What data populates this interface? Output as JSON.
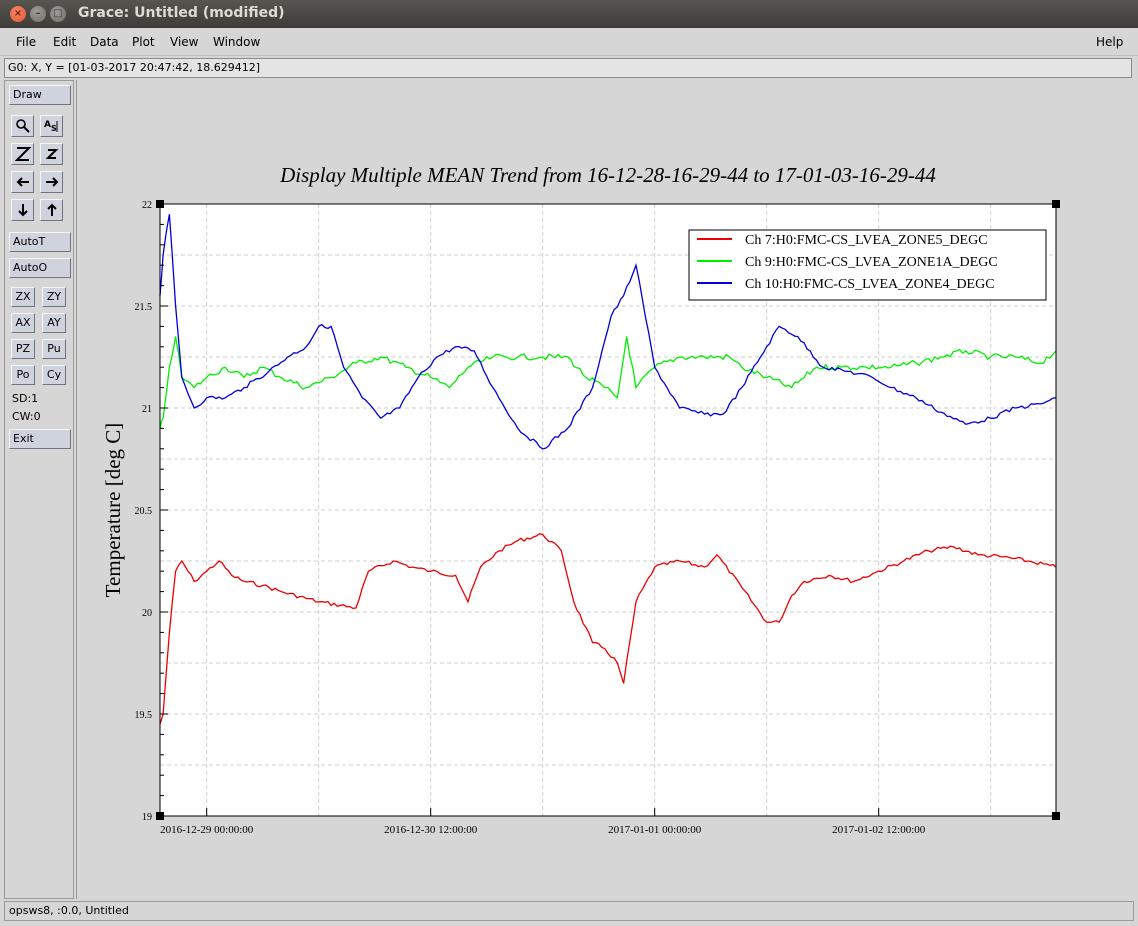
{
  "window": {
    "title": "Grace: Untitled (modified)",
    "close_glyph": "×",
    "min_glyph": "–",
    "max_glyph": "□"
  },
  "menu": {
    "file": "File",
    "edit": "Edit",
    "data": "Data",
    "plot": "Plot",
    "view": "View",
    "window": "Window",
    "help": "Help"
  },
  "coord_readout": "G0: X, Y = [01-03-2017 20:47:42, 18.629412]",
  "toolbar": {
    "draw": "Draw",
    "autot": "AutoT",
    "autoo": "AutoO",
    "zx": "ZX",
    "zy": "ZY",
    "ax": "AX",
    "ay": "AY",
    "pz": "PZ",
    "pu": "Pu",
    "po": "Po",
    "cy": "Cy",
    "sd": "SD:1",
    "cw": "CW:0",
    "exit": "Exit",
    "icons": [
      "zoom-icon",
      "autoscale-text-icon",
      "zoom-in-z-icon",
      "zoom-out-z-icon",
      "shift-left-icon",
      "shift-right-icon",
      "shift-down-icon",
      "shift-up-icon"
    ]
  },
  "status": "opsws8, :0.0, Untitled",
  "colors": {
    "red": "#ee0000",
    "green": "#00ee00",
    "blue": "#0000dd"
  },
  "chart_data": {
    "type": "line",
    "title": "Display Multiple MEAN Trend from 16-12-28-16-29-44 to 17-01-03-16-29-44",
    "xlabel": "",
    "ylabel": "Temperature [deg C]",
    "ylim": [
      19,
      22
    ],
    "yticks": [
      "19",
      "19.5",
      "20",
      "20.5",
      "21",
      "21.5",
      "22"
    ],
    "xlim": [
      "2016-12-28 16:29:44",
      "2017-01-03 16:29:44"
    ],
    "xticks": [
      "2016-12-29 00:00:00",
      "2016-12-30 12:00:00",
      "2017-01-01 00:00:00",
      "2017-01-02 12:00:00"
    ],
    "grid": true,
    "legend_position": "top-right",
    "series": [
      {
        "name": "Ch 7:H0:FMC-CS_LVEA_ZONE5_DEGC",
        "color": "#ee0000",
        "x": [
          "2016-12-28 16:29:44",
          "2016-12-28 17:00",
          "2016-12-28 18:00",
          "2016-12-28 19:00",
          "2016-12-28 20:00",
          "2016-12-28 22:00",
          "2016-12-29 00:00",
          "2016-12-29 02:00",
          "2016-12-29 04:00",
          "2016-12-29 06:00",
          "2016-12-29 09:00",
          "2016-12-29 12:00",
          "2016-12-29 18:00",
          "2016-12-30 00:00",
          "2016-12-30 02:00",
          "2016-12-30 06:00",
          "2016-12-30 09:00",
          "2016-12-30 12:00",
          "2016-12-30 16:00",
          "2016-12-30 18:00",
          "2016-12-30 20:00",
          "2016-12-30 23:00",
          "2016-12-31 02:00",
          "2016-12-31 06:00",
          "2016-12-31 09:00",
          "2016-12-31 11:00",
          "2016-12-31 14:00",
          "2016-12-31 16:00",
          "2016-12-31 18:00",
          "2016-12-31 19:00",
          "2016-12-31 21:00",
          "2017-01-01 00:00",
          "2017-01-01 04:00",
          "2017-01-01 08:00",
          "2017-01-01 10:00",
          "2017-01-01 14:00",
          "2017-01-01 18:00",
          "2017-01-01 20:00",
          "2017-01-01 22:00",
          "2017-01-02 00:00",
          "2017-01-02 04:00",
          "2017-01-02 08:00",
          "2017-01-02 12:00",
          "2017-01-02 16:00",
          "2017-01-02 20:00",
          "2017-01-03 00:00",
          "2017-01-03 04:00",
          "2017-01-03 08:00",
          "2017-01-03 12:00",
          "2017-01-03 16:29:44"
        ],
        "y": [
          19.45,
          19.5,
          19.9,
          20.2,
          20.25,
          20.15,
          20.2,
          20.25,
          20.18,
          20.15,
          20.13,
          20.1,
          20.05,
          20.02,
          20.2,
          20.25,
          20.22,
          20.2,
          20.18,
          20.05,
          20.22,
          20.3,
          20.35,
          20.38,
          20.3,
          20.05,
          19.85,
          19.82,
          19.75,
          19.65,
          20.05,
          20.22,
          20.25,
          20.22,
          20.28,
          20.12,
          19.95,
          19.95,
          20.08,
          20.15,
          20.18,
          20.15,
          20.2,
          20.25,
          20.3,
          20.32,
          20.28,
          20.27,
          20.25,
          20.22
        ]
      },
      {
        "name": "Ch 9:H0:FMC-CS_LVEA_ZONE1A_DEGC",
        "color": "#00ee00",
        "x": [
          "2016-12-28 16:29:44",
          "2016-12-28 17:00",
          "2016-12-28 18:00",
          "2016-12-28 19:00",
          "2016-12-28 20:00",
          "2016-12-28 22:00",
          "2016-12-29 00:00",
          "2016-12-29 03:00",
          "2016-12-29 06:00",
          "2016-12-29 09:00",
          "2016-12-29 12:00",
          "2016-12-29 16:00",
          "2016-12-29 20:00",
          "2016-12-30 00:00",
          "2016-12-30 04:00",
          "2016-12-30 08:00",
          "2016-12-30 12:00",
          "2016-12-30 15:00",
          "2016-12-30 18:00",
          "2016-12-30 22:00",
          "2016-12-31 02:00",
          "2016-12-31 06:00",
          "2016-12-31 10:00",
          "2016-12-31 13:00",
          "2016-12-31 16:00",
          "2016-12-31 18:00",
          "2016-12-31 19:30",
          "2016-12-31 21:00",
          "2017-01-01 00:00",
          "2017-01-01 04:00",
          "2017-01-01 08:00",
          "2017-01-01 12:00",
          "2017-01-01 14:00",
          "2017-01-01 18:00",
          "2017-01-01 22:00",
          "2017-01-02 02:00",
          "2017-01-02 06:00",
          "2017-01-02 10:00",
          "2017-01-02 14:00",
          "2017-01-02 18:00",
          "2017-01-02 22:00",
          "2017-01-03 02:00",
          "2017-01-03 06:00",
          "2017-01-03 10:00",
          "2017-01-03 14:00",
          "2017-01-03 16:29:44"
        ],
        "y": [
          20.9,
          20.95,
          21.2,
          21.35,
          21.15,
          21.1,
          21.15,
          21.2,
          21.15,
          21.2,
          21.15,
          21.1,
          21.15,
          21.22,
          21.25,
          21.2,
          21.15,
          21.1,
          21.2,
          21.25,
          21.25,
          21.25,
          21.25,
          21.15,
          21.1,
          21.05,
          21.35,
          21.1,
          21.2,
          21.25,
          21.25,
          21.25,
          21.2,
          21.15,
          21.1,
          21.2,
          21.2,
          21.2,
          21.2,
          21.22,
          21.25,
          21.28,
          21.25,
          21.25,
          21.22,
          21.28
        ]
      },
      {
        "name": "Ch 10:H0:FMC-CS_LVEA_ZONE4_DEGC",
        "color": "#0000dd",
        "x": [
          "2016-12-28 16:29:44",
          "2016-12-28 17:00",
          "2016-12-28 18:00",
          "2016-12-28 19:00",
          "2016-12-28 20:00",
          "2016-12-28 22:00",
          "2016-12-29 00:00",
          "2016-12-29 03:00",
          "2016-12-29 06:00",
          "2016-12-29 10:00",
          "2016-12-29 13:00",
          "2016-12-29 16:00",
          "2016-12-29 18:00",
          "2016-12-29 20:00",
          "2016-12-29 22:00",
          "2016-12-30 01:00",
          "2016-12-30 04:00",
          "2016-12-30 07:00",
          "2016-12-30 10:00",
          "2016-12-30 13:00",
          "2016-12-30 16:00",
          "2016-12-30 19:00",
          "2016-12-30 22:00",
          "2016-12-31 02:00",
          "2016-12-31 06:00",
          "2016-12-31 10:00",
          "2016-12-31 14:00",
          "2016-12-31 17:00",
          "2016-12-31 19:00",
          "2016-12-31 21:00",
          "2017-01-01 00:00",
          "2017-01-01 04:00",
          "2017-01-01 08:00",
          "2017-01-01 11:00",
          "2017-01-01 14:00",
          "2017-01-01 17:00",
          "2017-01-01 20:00",
          "2017-01-01 23:00",
          "2017-01-02 03:00",
          "2017-01-02 07:00",
          "2017-01-02 11:00",
          "2017-01-02 14:00",
          "2017-01-02 18:00",
          "2017-01-02 22:00",
          "2017-01-03 02:00",
          "2017-01-03 06:00",
          "2017-01-03 10:00",
          "2017-01-03 14:00",
          "2017-01-03 16:29:44"
        ],
        "y": [
          21.55,
          21.75,
          21.95,
          21.5,
          21.15,
          21.0,
          21.05,
          21.05,
          21.1,
          21.18,
          21.25,
          21.3,
          21.4,
          21.4,
          21.2,
          21.05,
          20.95,
          21.0,
          21.15,
          21.25,
          21.3,
          21.28,
          21.1,
          20.9,
          20.8,
          20.9,
          21.1,
          21.45,
          21.55,
          21.7,
          21.2,
          21.0,
          20.97,
          20.97,
          21.1,
          21.25,
          21.4,
          21.35,
          21.2,
          21.18,
          21.15,
          21.1,
          21.05,
          20.98,
          20.92,
          20.95,
          21.0,
          21.02,
          21.05
        ]
      }
    ]
  }
}
